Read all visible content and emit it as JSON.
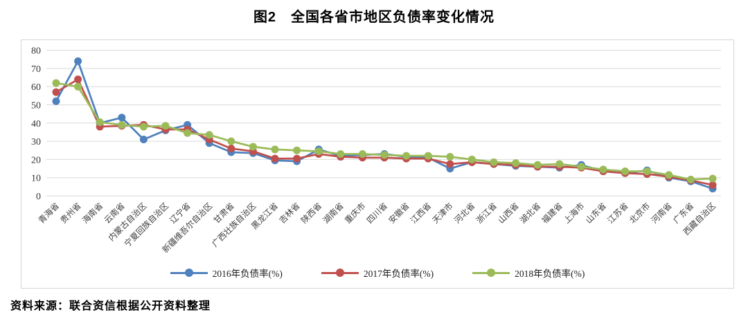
{
  "title": "图2　全国各省市地区负债率变化情况",
  "source": "资料来源：联合资信根据公开资料整理",
  "chart_data": {
    "type": "line",
    "title": "图2 全国各省市地区负债率变化情况",
    "xlabel": "",
    "ylabel": "",
    "ylim": [
      0,
      80
    ],
    "yticks": [
      0,
      10,
      20,
      30,
      40,
      50,
      60,
      70,
      80
    ],
    "grid": true,
    "legend_position": "bottom",
    "marker": "circle",
    "grid_color": "#d9d9d9",
    "axis_text_color": "#404040",
    "categories": [
      "青海省",
      "贵州省",
      "海南省",
      "云南省",
      "内蒙古自治区",
      "宁夏回族自治区",
      "辽宁省",
      "新疆维吾尔自治区",
      "甘肃省",
      "广西壮族自治区",
      "黑龙江省",
      "吉林省",
      "陕西省",
      "湖南省",
      "重庆市",
      "四川省",
      "安徽省",
      "江西省",
      "天津市",
      "河北省",
      "浙江省",
      "山西省",
      "湖北省",
      "福建省",
      "上海市",
      "山东省",
      "江苏省",
      "北京市",
      "河南省",
      "广东省",
      "西藏自治区"
    ],
    "series": [
      {
        "name": "2016年负债率(%)",
        "color": "#4F81BD",
        "values": [
          52,
          74,
          40,
          43,
          31,
          36,
          39,
          29,
          24,
          23.5,
          19.5,
          19,
          25.5,
          22,
          22.5,
          23,
          21.5,
          21,
          15,
          18.5,
          17.5,
          16.5,
          16,
          15.5,
          17,
          13.5,
          12.5,
          14,
          10,
          8,
          4
        ]
      },
      {
        "name": "2017年负债率(%)",
        "color": "#C0504D",
        "values": [
          57,
          64,
          38,
          38.5,
          39,
          36.5,
          36.5,
          31,
          26,
          24.5,
          20.5,
          20.5,
          23,
          21.5,
          21,
          21,
          20.5,
          20.5,
          17.5,
          18.5,
          17.5,
          17,
          16,
          16,
          15.5,
          13.5,
          12.5,
          12,
          10.5,
          8.5,
          6
        ]
      },
      {
        "name": "2018年负债率(%)",
        "color": "#9BBB59",
        "values": [
          62,
          60,
          40.5,
          39,
          38,
          38.5,
          34.5,
          33.5,
          30,
          27,
          25.5,
          25,
          24.5,
          23,
          23,
          22.5,
          22,
          22,
          21.5,
          20,
          18.5,
          18,
          17,
          17.5,
          16,
          14.5,
          13.5,
          13.5,
          11.5,
          9,
          9.5
        ]
      }
    ]
  }
}
